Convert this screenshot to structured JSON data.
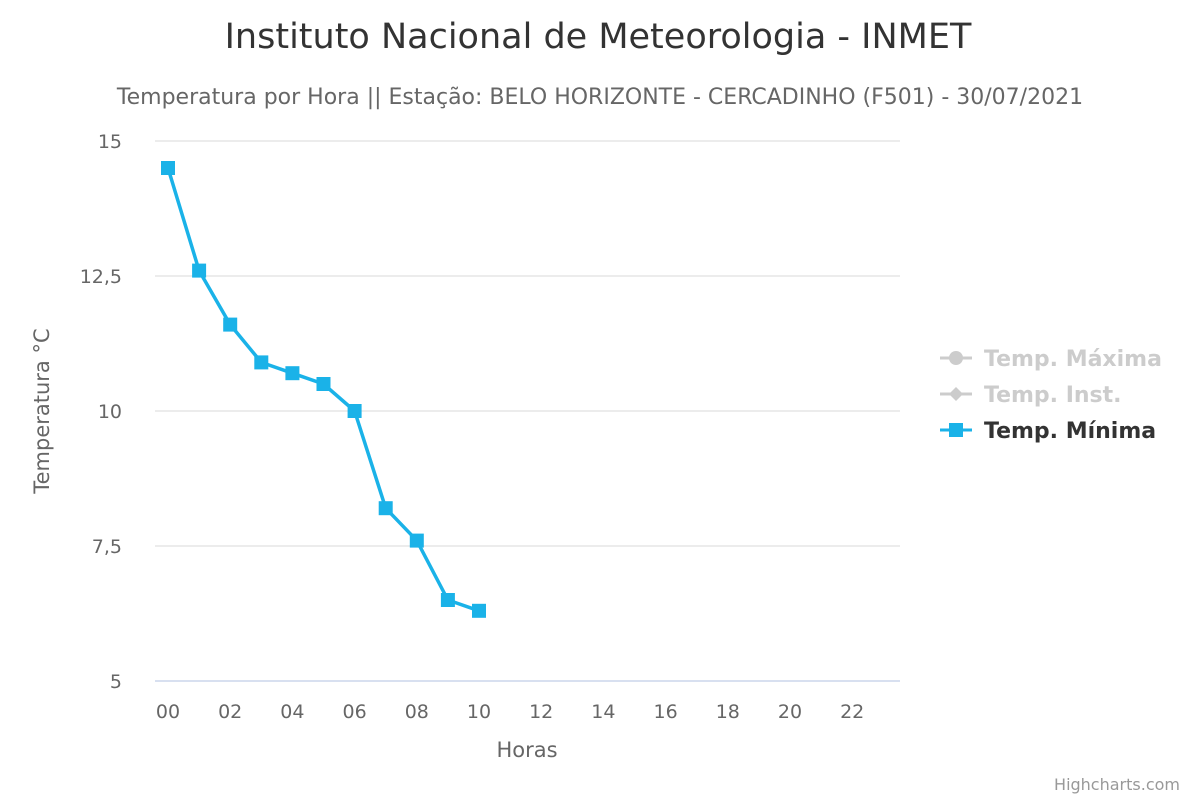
{
  "chart_data": {
    "type": "line",
    "title": "Instituto Nacional de Meteorologia - INMET",
    "subtitle": "Temperatura por Hora || Estação: BELO HORIZONTE - CERCADINHO (F501) - 30/07/2021",
    "xlabel": "Horas",
    "ylabel": "Temperatura °C",
    "x_ticks": [
      "00",
      "02",
      "04",
      "06",
      "08",
      "10",
      "12",
      "14",
      "16",
      "18",
      "20",
      "22"
    ],
    "y_ticks": [
      "5",
      "7,5",
      "10",
      "12,5",
      "15"
    ],
    "ylim": [
      5,
      15
    ],
    "xlim": [
      0,
      23
    ],
    "grid": true,
    "legend_position": "right",
    "series": [
      {
        "name": "Temp. Máxima",
        "visible": false,
        "marker": "circle",
        "color": "#cccccc",
        "x": [],
        "values": []
      },
      {
        "name": "Temp. Inst.",
        "visible": false,
        "marker": "diamond",
        "color": "#cccccc",
        "x": [],
        "values": []
      },
      {
        "name": "Temp. Mínima",
        "visible": true,
        "marker": "square",
        "color": "#1ab2e8",
        "x": [
          0,
          1,
          2,
          3,
          4,
          5,
          6,
          7,
          8,
          9,
          10
        ],
        "values": [
          14.5,
          12.6,
          11.6,
          10.9,
          10.7,
          10.5,
          10.0,
          8.2,
          7.6,
          6.5,
          6.3
        ]
      }
    ]
  },
  "credits": "Highcharts.com",
  "colors": {
    "grid": "#e6e6e6",
    "axis_line": "#ccd6eb",
    "legend_hidden": "#cccccc",
    "legend_active": "#333333"
  }
}
